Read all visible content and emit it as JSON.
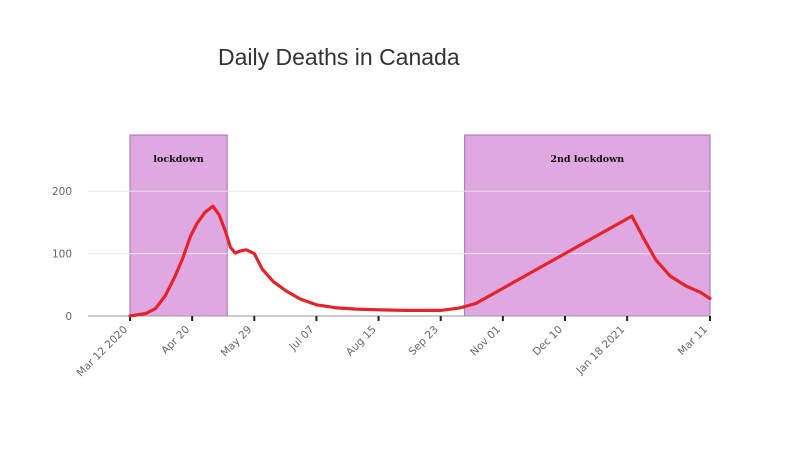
{
  "chart_data": {
    "type": "line",
    "title": "Daily Deaths in Canada",
    "xlabel": "",
    "ylabel": "",
    "x_type": "date",
    "xlim": [
      "2020-03-12",
      "2021-03-11"
    ],
    "ylim": [
      0,
      290
    ],
    "y_ticks": [
      0,
      100,
      200
    ],
    "x_ticks": [
      {
        "date": "2020-03-12",
        "label": "Mar 12 2020"
      },
      {
        "date": "2020-04-20",
        "label": "Apr 20"
      },
      {
        "date": "2020-05-29",
        "label": "May 29"
      },
      {
        "date": "2020-07-07",
        "label": "Jul 07"
      },
      {
        "date": "2020-08-15",
        "label": "Aug 15"
      },
      {
        "date": "2020-09-23",
        "label": "Sep 23"
      },
      {
        "date": "2020-11-01",
        "label": "Nov 01"
      },
      {
        "date": "2020-12-10",
        "label": "Dec 10"
      },
      {
        "date": "2021-01-18",
        "label": "Jan 18 2021"
      },
      {
        "date": "2021-03-11",
        "label": "Mar 11"
      }
    ],
    "grid": true,
    "series": [
      {
        "color": "#e3242b",
        "x": [
          "2020-03-12",
          "2020-03-22",
          "2020-03-28",
          "2020-04-03",
          "2020-04-09",
          "2020-04-14",
          "2020-04-19",
          "2020-04-23",
          "2020-04-28",
          "2020-05-03",
          "2020-05-07",
          "2020-05-11",
          "2020-05-14",
          "2020-05-17",
          "2020-05-20",
          "2020-05-24",
          "2020-05-29",
          "2020-06-03",
          "2020-06-10",
          "2020-06-18",
          "2020-06-27",
          "2020-07-07",
          "2020-07-20",
          "2020-08-01",
          "2020-08-15",
          "2020-09-01",
          "2020-09-23",
          "2020-10-05",
          "2020-10-15",
          "2021-01-21",
          "2021-01-28",
          "2021-02-05",
          "2021-02-14",
          "2021-02-24",
          "2021-03-05",
          "2021-03-11"
        ],
        "y": [
          0,
          4,
          12,
          32,
          62,
          92,
          128,
          148,
          166,
          176,
          162,
          135,
          110,
          101,
          104,
          106,
          100,
          75,
          55,
          40,
          27,
          18,
          13,
          11,
          10,
          9,
          9,
          13,
          20,
          160,
          126,
          90,
          64,
          48,
          38,
          28
        ]
      }
    ],
    "shaded_regions": [
      {
        "start": "2020-03-12",
        "end": "2020-05-12",
        "label": "lockdown",
        "color": "#e0a8e0"
      },
      {
        "start": "2020-10-08",
        "end": "2021-03-11",
        "label": "2nd lockdown",
        "color": "#e0a8e0"
      }
    ]
  }
}
